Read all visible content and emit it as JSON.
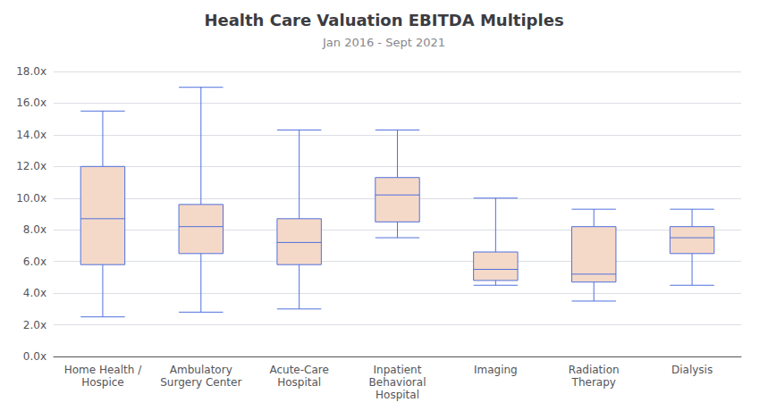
{
  "chart_data": {
    "type": "boxplot",
    "title": "Health Care Valuation EBITDA Multiples",
    "subtitle": "Jan 2016 - Sept 2021",
    "categories": [
      "Home Health /\nHospice",
      "Ambulatory\nSurgery Center",
      "Acute-Care\nHospital",
      "Inpatient\nBehavioral\nHospital",
      "Imaging",
      "Radiation\nTherapy",
      "Dialysis"
    ],
    "values": [
      [
        2.5,
        5.8,
        8.7,
        12.0,
        15.5
      ],
      [
        2.8,
        6.5,
        8.2,
        9.6,
        17.0
      ],
      [
        3.0,
        5.8,
        7.2,
        8.7,
        14.3
      ],
      [
        7.5,
        8.5,
        10.2,
        11.3,
        14.3
      ],
      [
        4.5,
        4.8,
        5.5,
        6.6,
        10.0
      ],
      [
        3.5,
        4.7,
        5.2,
        8.2,
        9.3
      ],
      [
        4.5,
        6.5,
        7.5,
        8.2,
        9.3
      ]
    ],
    "color": "#f5d9c8",
    "ylim": [
      0,
      18
    ],
    "yticks": [
      {
        "value": 0,
        "label": "0.0x"
      },
      {
        "value": 2,
        "label": "2.0x"
      },
      {
        "value": 4,
        "label": "4.0x"
      },
      {
        "value": 6,
        "label": "6.0x"
      },
      {
        "value": 8,
        "label": "8.0x"
      },
      {
        "value": 10,
        "label": "10.0x"
      },
      {
        "value": 12,
        "label": "12.0x"
      },
      {
        "value": 14,
        "label": "14.0x"
      },
      {
        "value": 16,
        "label": "16.0x"
      },
      {
        "value": 18,
        "label": "18.0x"
      }
    ],
    "grid": true
  }
}
